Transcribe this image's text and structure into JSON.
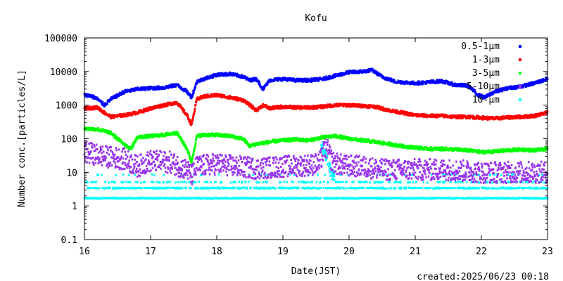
{
  "chart_data": {
    "type": "scatter",
    "title": "Kofu",
    "xlabel": "Date(JST)",
    "ylabel": "Number conc.[particles/L]",
    "footer": "created:2025/06/23 00:18",
    "yscale": "log",
    "xlim": [
      16,
      23
    ],
    "ylim": [
      0.1,
      100000
    ],
    "x_ticks": [
      16,
      17,
      18,
      19,
      20,
      21,
      22,
      23
    ],
    "y_ticks": [
      "0.1",
      "1",
      "10",
      "100",
      "1000",
      "10000",
      "100000"
    ],
    "grid": false,
    "legend_position": "top-right",
    "series": [
      {
        "name": "0.5-1μm",
        "color": "#0000ff",
        "style": "dense",
        "x": [
          16.0,
          16.1,
          16.2,
          16.3,
          16.4,
          16.6,
          16.8,
          17.0,
          17.2,
          17.4,
          17.55,
          17.62,
          17.7,
          17.8,
          18.0,
          18.2,
          18.4,
          18.5,
          18.6,
          18.7,
          18.8,
          19.0,
          19.2,
          19.4,
          19.6,
          19.8,
          20.0,
          20.2,
          20.35,
          20.5,
          20.7,
          21.0,
          21.2,
          21.4,
          21.6,
          21.8,
          21.95,
          22.05,
          22.2,
          22.4,
          22.6,
          22.8,
          23.0
        ],
        "y": [
          2000,
          1900,
          1500,
          1000,
          1500,
          2500,
          3000,
          3200,
          3300,
          4000,
          2500,
          1700,
          5000,
          6000,
          8000,
          8500,
          7000,
          5500,
          6000,
          3000,
          5500,
          6000,
          5500,
          5500,
          6000,
          7500,
          9500,
          10000,
          11000,
          7000,
          5000,
          4500,
          4800,
          5200,
          4000,
          3800,
          2000,
          1700,
          2500,
          3200,
          3600,
          4500,
          6000
        ]
      },
      {
        "name": "1-3μm",
        "color": "#ff0000",
        "style": "dense",
        "x": [
          16.0,
          16.2,
          16.3,
          16.4,
          16.6,
          16.8,
          17.0,
          17.2,
          17.4,
          17.55,
          17.62,
          17.7,
          17.8,
          18.0,
          18.2,
          18.4,
          18.5,
          18.6,
          18.7,
          18.8,
          19.0,
          19.2,
          19.4,
          19.6,
          19.8,
          20.0,
          20.2,
          20.4,
          20.6,
          20.8,
          21.0,
          21.2,
          21.4,
          21.6,
          21.8,
          22.0,
          22.2,
          22.4,
          22.6,
          22.8,
          23.0
        ],
        "y": [
          800,
          850,
          600,
          450,
          500,
          600,
          800,
          1000,
          1200,
          500,
          260,
          1500,
          1800,
          2000,
          1700,
          1400,
          1000,
          700,
          1000,
          800,
          900,
          850,
          850,
          900,
          1000,
          1000,
          950,
          900,
          700,
          600,
          500,
          480,
          480,
          450,
          450,
          420,
          400,
          430,
          450,
          480,
          600
        ]
      },
      {
        "name": "3-5μm",
        "color": "#00ff00",
        "style": "dense",
        "x": [
          16.0,
          16.2,
          16.4,
          16.5,
          16.6,
          16.7,
          16.8,
          17.0,
          17.2,
          17.4,
          17.55,
          17.62,
          17.7,
          17.8,
          18.0,
          18.2,
          18.4,
          18.5,
          18.6,
          18.8,
          19.0,
          19.2,
          19.4,
          19.6,
          19.8,
          20.0,
          20.2,
          20.4,
          20.6,
          20.8,
          21.0,
          21.2,
          21.4,
          21.6,
          21.8,
          22.0,
          22.2,
          22.4,
          22.6,
          22.8,
          23.0
        ],
        "y": [
          200,
          190,
          150,
          100,
          70,
          50,
          110,
          120,
          130,
          150,
          50,
          20,
          120,
          130,
          130,
          120,
          100,
          60,
          70,
          80,
          90,
          95,
          90,
          110,
          120,
          100,
          90,
          80,
          70,
          60,
          55,
          50,
          50,
          48,
          45,
          40,
          42,
          45,
          48,
          45,
          50
        ]
      },
      {
        "name": "5-10μm",
        "color": "#9933ee",
        "style": "noisy",
        "spread": 0.32,
        "x": [
          16.0,
          16.3,
          16.6,
          16.8,
          17.0,
          17.3,
          17.55,
          17.62,
          17.7,
          18.0,
          18.3,
          18.6,
          19.0,
          19.3,
          19.55,
          19.65,
          19.75,
          19.9,
          20.2,
          20.5,
          20.8,
          21.0,
          21.5,
          22.0,
          22.5,
          23.0
        ],
        "y": [
          40,
          30,
          25,
          15,
          22,
          20,
          12,
          8,
          15,
          18,
          15,
          13,
          15,
          16,
          18,
          60,
          20,
          16,
          15,
          12,
          12,
          12,
          12,
          10,
          10,
          10
        ]
      },
      {
        "name": "10-μm",
        "color": "#00ffff",
        "style": "levels",
        "levels": [
          1.7,
          3.4,
          5.1,
          8.5
        ],
        "level_density": [
          1.0,
          0.55,
          0.2,
          0.06
        ],
        "spike": {
          "x": [
            19.6,
            19.63,
            19.66,
            19.7,
            19.75
          ],
          "y": [
            60,
            40,
            25,
            15,
            8
          ]
        }
      }
    ]
  }
}
